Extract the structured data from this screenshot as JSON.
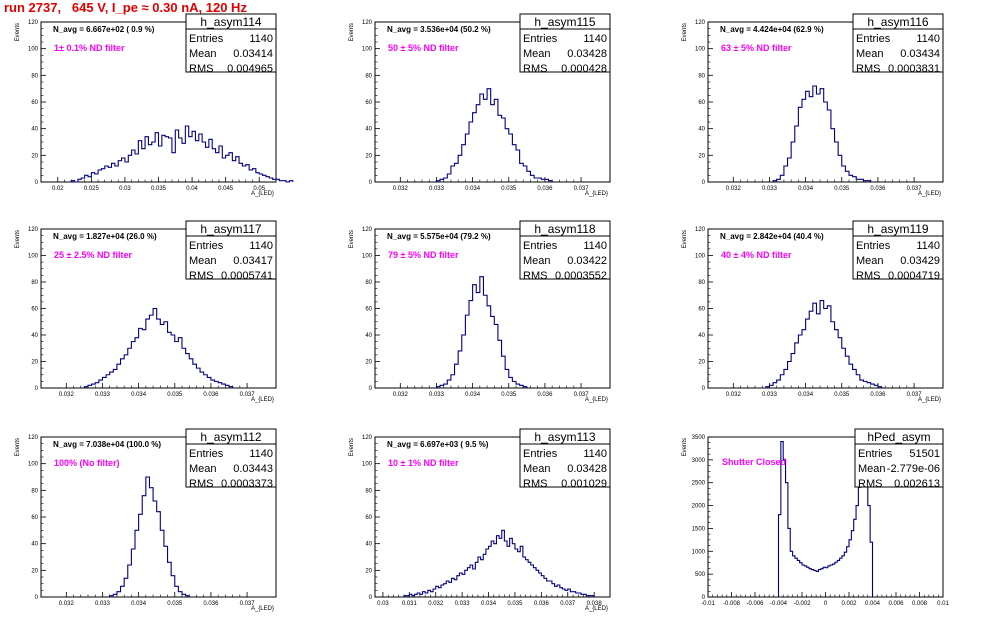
{
  "page": {
    "title": "run 2737,   645 V, I_pe ≈ 0.30 nA, 120 Hz"
  },
  "colors": {
    "title": "#e00000",
    "note": "#ff00ff",
    "hist": "#000080",
    "axis": "#000000"
  },
  "chart_data": [
    {
      "type": "histogram",
      "name": "h_asym114",
      "stats": {
        "entries": "1140",
        "mean": "0.03414",
        "rms": "0.004965"
      },
      "navg": "N_avg = 6.667e+02 ( 0.9 %)",
      "note": "1± 0.1% ND filter",
      "ylabel": "Events",
      "xlabel": "A_{LED}",
      "xlim": [
        0.0175,
        0.0525
      ],
      "ylim": [
        0,
        120
      ],
      "yticks": [
        0,
        20,
        40,
        60,
        80,
        100,
        120
      ],
      "xticks": [
        0.02,
        0.025,
        0.03,
        0.035,
        0.04,
        0.045,
        0.05
      ],
      "xtick_labels": [
        "0.02",
        "0.025",
        "0.03",
        "0.035",
        "0.04",
        "0.045",
        "0.05"
      ],
      "bin_width": 0.0005,
      "bins_start": 0.022,
      "counts": [
        1,
        0,
        2,
        3,
        5,
        4,
        7,
        6,
        9,
        10,
        12,
        11,
        14,
        12,
        16,
        18,
        15,
        20,
        24,
        21,
        31,
        25,
        34,
        28,
        30,
        37,
        27,
        35,
        34,
        33,
        22,
        39,
        33,
        29,
        42,
        34,
        38,
        31,
        36,
        30,
        26,
        32,
        25,
        22,
        27,
        18,
        20,
        22,
        16,
        19,
        14,
        12,
        13,
        9,
        10,
        7,
        6,
        5,
        4,
        3,
        2,
        2,
        1,
        1,
        0,
        1
      ]
    },
    {
      "type": "histogram",
      "name": "h_asym115",
      "stats": {
        "entries": "1140",
        "mean": "0.03428",
        "rms": "0.000428"
      },
      "navg": "N_avg = 3.536e+04 (50.2 %)",
      "note": "50 ± 5% ND filter",
      "ylabel": "Events",
      "xlabel": "A_{LED}",
      "xlim": [
        0.0313,
        0.0378
      ],
      "ylim": [
        0,
        120
      ],
      "yticks": [
        0,
        20,
        40,
        60,
        80,
        100,
        120
      ],
      "xticks": [
        0.032,
        0.033,
        0.034,
        0.035,
        0.036,
        0.037
      ],
      "xtick_labels": [
        "0.032",
        "0.033",
        "0.034",
        "0.035",
        "0.036",
        "0.037"
      ],
      "bin_width": 0.0001,
      "bins_start": 0.033,
      "counts": [
        1,
        2,
        3,
        6,
        12,
        14,
        20,
        28,
        36,
        45,
        52,
        58,
        66,
        62,
        70,
        58,
        62,
        50,
        48,
        40,
        36,
        28,
        24,
        14,
        12,
        8,
        5,
        3,
        3,
        2,
        2,
        1
      ]
    },
    {
      "type": "histogram",
      "name": "h_asym116",
      "stats": {
        "entries": "1140",
        "mean": "0.03434",
        "rms": "0.0003831"
      },
      "navg": "N_avg = 4.424e+04 (62.9 %)",
      "note": "63 ± 5% ND filter",
      "ylabel": "Events",
      "xlabel": "A_{LED}",
      "xlim": [
        0.0313,
        0.0378
      ],
      "ylim": [
        0,
        120
      ],
      "yticks": [
        0,
        20,
        40,
        60,
        80,
        100,
        120
      ],
      "xticks": [
        0.032,
        0.033,
        0.034,
        0.035,
        0.036,
        0.037
      ],
      "xtick_labels": [
        "0.032",
        "0.033",
        "0.034",
        "0.035",
        "0.036",
        "0.037"
      ],
      "bin_width": 0.0001,
      "bins_start": 0.0331,
      "counts": [
        1,
        2,
        5,
        12,
        18,
        30,
        42,
        56,
        62,
        68,
        64,
        72,
        66,
        70,
        60,
        54,
        40,
        30,
        20,
        12,
        8,
        5,
        4,
        2,
        2,
        1,
        1
      ]
    },
    {
      "type": "histogram",
      "name": "h_asym117",
      "stats": {
        "entries": "1140",
        "mean": "0.03417",
        "rms": "0.0005741"
      },
      "navg": "N_avg = 1.827e+04 (26.0 %)",
      "note": "25 ± 2.5% ND filter",
      "ylabel": "Events",
      "xlabel": "A_{LED}",
      "xlim": [
        0.0313,
        0.0378
      ],
      "ylim": [
        0,
        120
      ],
      "yticks": [
        0,
        20,
        40,
        60,
        80,
        100,
        120
      ],
      "xticks": [
        0.032,
        0.033,
        0.034,
        0.035,
        0.036,
        0.037
      ],
      "xtick_labels": [
        "0.032",
        "0.033",
        "0.034",
        "0.035",
        "0.036",
        "0.037"
      ],
      "bin_width": 0.0001,
      "bins_start": 0.0325,
      "counts": [
        1,
        2,
        3,
        4,
        6,
        8,
        10,
        12,
        14,
        18,
        22,
        25,
        30,
        35,
        38,
        45,
        44,
        52,
        55,
        60,
        52,
        48,
        50,
        42,
        40,
        35,
        38,
        30,
        26,
        22,
        18,
        15,
        12,
        10,
        8,
        6,
        5,
        4,
        3,
        2,
        1
      ]
    },
    {
      "type": "histogram",
      "name": "h_asym118",
      "stats": {
        "entries": "1140",
        "mean": "0.03422",
        "rms": "0.0003552"
      },
      "navg": "N_avg = 5.575e+04 (79.2 %)",
      "note": "79 ± 5% ND filter",
      "ylabel": "Events",
      "xlabel": "A_{LED}",
      "xlim": [
        0.0313,
        0.0378
      ],
      "ylim": [
        0,
        120
      ],
      "yticks": [
        0,
        20,
        40,
        60,
        80,
        100,
        120
      ],
      "xticks": [
        0.032,
        0.033,
        0.034,
        0.035,
        0.036,
        0.037
      ],
      "xtick_labels": [
        "0.032",
        "0.033",
        "0.034",
        "0.035",
        "0.036",
        "0.037"
      ],
      "bin_width": 0.0001,
      "bins_start": 0.033,
      "counts": [
        1,
        2,
        3,
        6,
        10,
        18,
        28,
        40,
        55,
        66,
        78,
        72,
        84,
        70,
        62,
        54,
        48,
        36,
        24,
        14,
        8,
        5,
        3,
        2,
        1
      ]
    },
    {
      "type": "histogram",
      "name": "h_asym119",
      "stats": {
        "entries": "1140",
        "mean": "0.03429",
        "rms": "0.0004719"
      },
      "navg": "N_avg = 2.842e+04 (40.4 %)",
      "note": "40 ± 4% ND filter",
      "ylabel": "Events",
      "xlabel": "A_{LED}",
      "xlim": [
        0.0313,
        0.0378
      ],
      "ylim": [
        0,
        120
      ],
      "yticks": [
        0,
        20,
        40,
        60,
        80,
        100,
        120
      ],
      "xticks": [
        0.032,
        0.033,
        0.034,
        0.035,
        0.036,
        0.037
      ],
      "xtick_labels": [
        "0.032",
        "0.033",
        "0.034",
        "0.035",
        "0.036",
        "0.037"
      ],
      "bin_width": 0.0001,
      "bins_start": 0.0329,
      "counts": [
        1,
        2,
        4,
        6,
        10,
        14,
        20,
        26,
        34,
        40,
        44,
        52,
        58,
        64,
        56,
        66,
        60,
        62,
        50,
        44,
        38,
        30,
        24,
        18,
        14,
        10,
        6,
        5,
        4,
        3,
        2,
        1
      ]
    },
    {
      "type": "histogram",
      "name": "h_asym112",
      "stats": {
        "entries": "1140",
        "mean": "0.03443",
        "rms": "0.0003373"
      },
      "navg": "N_avg = 7.038e+04 (100.0 %)",
      "note": "100% (No filter)",
      "ylabel": "Events",
      "xlabel": "A_{LED}",
      "xlim": [
        0.0313,
        0.0378
      ],
      "ylim": [
        0,
        120
      ],
      "yticks": [
        0,
        20,
        40,
        60,
        80,
        100,
        120
      ],
      "xticks": [
        0.032,
        0.033,
        0.034,
        0.035,
        0.036,
        0.037
      ],
      "xtick_labels": [
        "0.032",
        "0.033",
        "0.034",
        "0.035",
        "0.036",
        "0.037"
      ],
      "bin_width": 0.0001,
      "bins_start": 0.0332,
      "counts": [
        1,
        2,
        4,
        8,
        14,
        24,
        36,
        50,
        62,
        76,
        90,
        82,
        72,
        64,
        50,
        38,
        26,
        16,
        8,
        4,
        2,
        1
      ]
    },
    {
      "type": "histogram",
      "name": "h_asym113",
      "stats": {
        "entries": "1140",
        "mean": "0.03428",
        "rms": "0.001029"
      },
      "navg": "N_avg = 6.697e+03 ( 9.5 %)",
      "note": "10 ± 1% ND filter",
      "ylabel": "Events",
      "xlabel": "A_{LED}",
      "xlim": [
        0.0297,
        0.0386
      ],
      "ylim": [
        0,
        120
      ],
      "yticks": [
        0,
        20,
        40,
        60,
        80,
        100,
        120
      ],
      "xticks": [
        0.03,
        0.031,
        0.032,
        0.033,
        0.034,
        0.035,
        0.036,
        0.037,
        0.038
      ],
      "xtick_labels": [
        "0.03",
        "0.031",
        "0.032",
        "0.033",
        "0.034",
        "0.035",
        "0.036",
        "0.037",
        "0.038"
      ],
      "bin_width": 0.0001,
      "bins_start": 0.0308,
      "counts": [
        1,
        1,
        2,
        1,
        2,
        3,
        2,
        4,
        3,
        5,
        4,
        6,
        8,
        7,
        9,
        10,
        12,
        11,
        14,
        13,
        16,
        18,
        17,
        20,
        22,
        24,
        21,
        26,
        30,
        28,
        32,
        36,
        38,
        42,
        40,
        46,
        44,
        50,
        42,
        38,
        44,
        40,
        36,
        34,
        38,
        30,
        28,
        26,
        24,
        22,
        20,
        18,
        16,
        14,
        12,
        12,
        10,
        8,
        9,
        7,
        6,
        5,
        6,
        4,
        4,
        3,
        3,
        2,
        2,
        1,
        1,
        1
      ]
    },
    {
      "type": "histogram",
      "name": "hPed_asym",
      "stats": {
        "entries": "51501",
        "mean": "-2.779e-06",
        "rms": "0.002613"
      },
      "navg": "",
      "note": "Shutter Closed",
      "ylabel": "Events",
      "xlabel": "",
      "xlim": [
        -0.01,
        0.01
      ],
      "ylim": [
        0,
        3500
      ],
      "yticks": [
        0,
        500,
        1000,
        1500,
        2000,
        2500,
        3000,
        3500
      ],
      "xticks": [
        -0.01,
        -0.008,
        -0.006,
        -0.004,
        -0.002,
        0,
        0.002,
        0.004,
        0.006,
        0.008,
        0.01
      ],
      "xtick_labels": [
        "-0.01",
        "-0.008",
        "-0.006",
        "-0.004",
        "-0.002",
        "0",
        "0.002",
        "0.004",
        "0.006",
        "0.008",
        "0.01"
      ],
      "bin_width": 0.0002,
      "bins_start": -0.004,
      "counts": [
        1800,
        3400,
        3000,
        2500,
        1500,
        1000,
        900,
        850,
        800,
        750,
        700,
        680,
        650,
        620,
        600,
        580,
        560,
        600,
        620,
        650,
        640,
        680,
        700,
        720,
        760,
        800,
        850,
        900,
        980,
        1100,
        1250,
        1450,
        1700,
        2000,
        2400,
        2700,
        2950,
        2800,
        2000,
        1200
      ]
    }
  ]
}
